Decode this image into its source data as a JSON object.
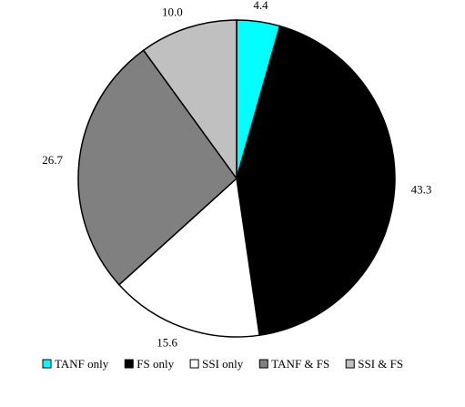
{
  "chart_data": {
    "type": "pie",
    "categories": [
      "TANF only",
      "FS only",
      "SSI only",
      "TANF & FS",
      "SSI & FS"
    ],
    "values": [
      4.4,
      43.3,
      15.6,
      26.7,
      10.0
    ],
    "value_labels": [
      "4.4",
      "43.3",
      "15.6",
      "26.7",
      "10.0"
    ],
    "colors": [
      "#00ffff",
      "#000000",
      "#ffffff",
      "#808080",
      "#c0c0c0"
    ],
    "start_angle": "12 o'clock",
    "direction": "clockwise",
    "legend_position": "bottom",
    "title": "",
    "slice_outline": "#000000"
  }
}
